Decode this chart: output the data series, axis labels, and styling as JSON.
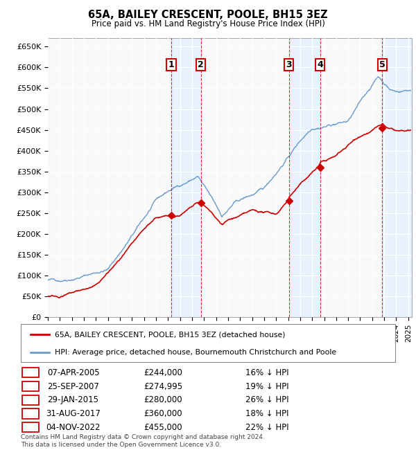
{
  "title": "65A, BAILEY CRESCENT, POOLE, BH15 3EZ",
  "subtitle": "Price paid vs. HM Land Registry's House Price Index (HPI)",
  "ylabel_ticks": [
    "£0",
    "£50K",
    "£100K",
    "£150K",
    "£200K",
    "£250K",
    "£300K",
    "£350K",
    "£400K",
    "£450K",
    "£500K",
    "£550K",
    "£600K",
    "£650K"
  ],
  "ytick_values": [
    0,
    50000,
    100000,
    150000,
    200000,
    250000,
    300000,
    350000,
    400000,
    450000,
    500000,
    550000,
    600000,
    650000
  ],
  "hpi_color": "#6699cc",
  "price_color": "#cc0000",
  "sale_years_decimal": [
    2005.27,
    2007.73,
    2015.07,
    2017.67,
    2022.83
  ],
  "sale_prices": [
    244000,
    274995,
    280000,
    360000,
    455000
  ],
  "sale_labels": [
    "1",
    "2",
    "3",
    "4",
    "5"
  ],
  "legend_line1": "65A, BAILEY CRESCENT, POOLE, BH15 3EZ (detached house)",
  "legend_line2": "HPI: Average price, detached house, Bournemouth Christchurch and Poole",
  "table_rows": [
    [
      "1",
      "07-APR-2005",
      "£244,000",
      "16% ↓ HPI"
    ],
    [
      "2",
      "25-SEP-2007",
      "£274,995",
      "19% ↓ HPI"
    ],
    [
      "3",
      "29-JAN-2015",
      "£280,000",
      "26% ↓ HPI"
    ],
    [
      "4",
      "31-AUG-2017",
      "£360,000",
      "18% ↓ HPI"
    ],
    [
      "5",
      "04-NOV-2022",
      "£455,000",
      "22% ↓ HPI"
    ]
  ],
  "footer": "Contains HM Land Registry data © Crown copyright and database right 2024.\nThis data is licensed under the Open Government Licence v3.0.",
  "xlim_start": 1995.0,
  "xlim_end": 2025.3,
  "ylim_max": 670000,
  "chart_bg": "#f9f9f9",
  "grid_color": "#ffffff",
  "shade_color": "#ddeeff"
}
